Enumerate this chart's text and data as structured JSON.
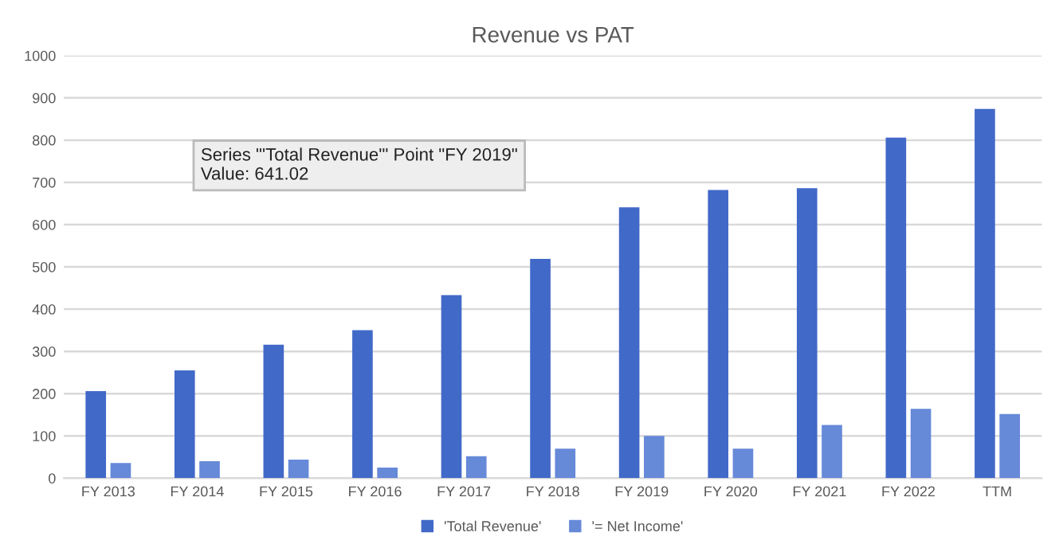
{
  "chart_data": {
    "type": "bar",
    "title": "Revenue vs PAT",
    "categories": [
      "FY 2013",
      "FY 2014",
      "FY 2015",
      "FY 2016",
      "FY 2017",
      "FY 2018",
      "FY 2019",
      "FY 2020",
      "FY 2021",
      "FY 2022",
      "TTM"
    ],
    "series": [
      {
        "name": "'Total Revenue'",
        "color": "#4169c8",
        "values": [
          206,
          255,
          316,
          350,
          433,
          519,
          641.02,
          682,
          686,
          806,
          874
        ]
      },
      {
        "name": "'= Net Income'",
        "color": "#6689d8",
        "values": [
          36,
          40,
          44,
          25,
          52,
          70,
          100,
          70,
          126,
          164,
          152
        ]
      }
    ],
    "ylim": [
      0,
      1000
    ],
    "yticks": [
      0,
      100,
      200,
      300,
      400,
      500,
      600,
      700,
      800,
      900,
      1000
    ],
    "grid": "y",
    "legend": "bottom",
    "annotations": [
      "Series \"'Total Revenue'\" Point \"FY 2019\"\nValue: 641.02"
    ]
  }
}
